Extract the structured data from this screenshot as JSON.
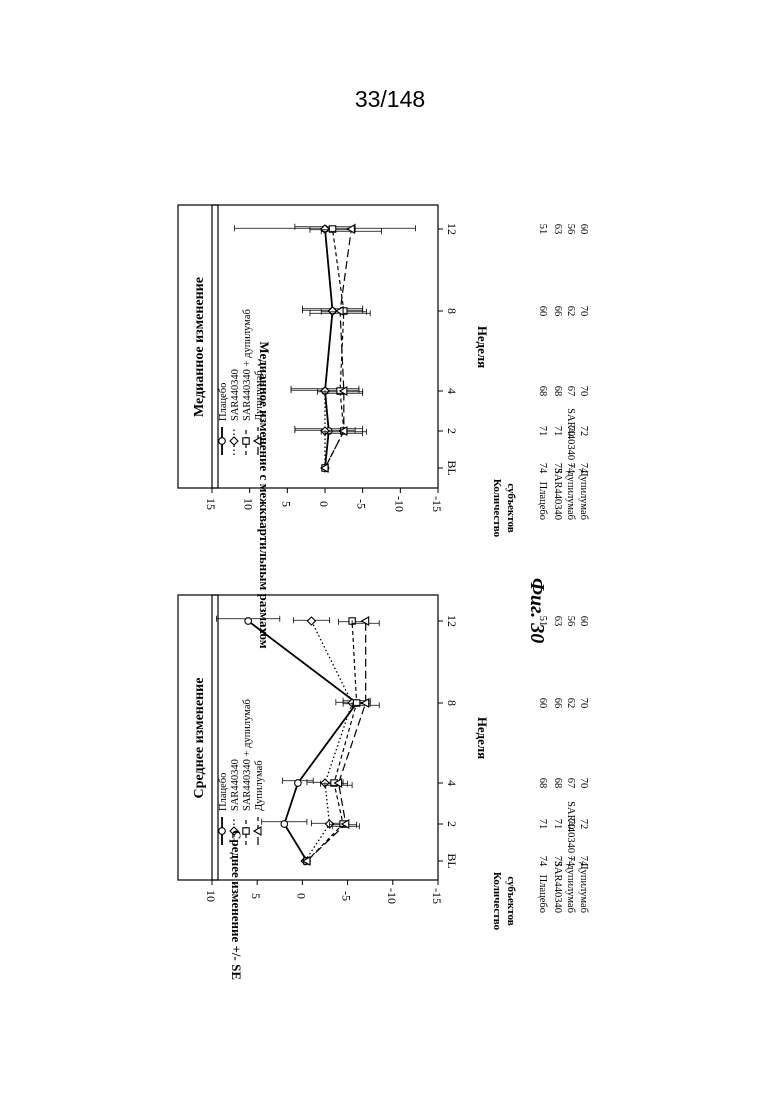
{
  "page_number": "33/148",
  "figure_caption": "Фиг. 30",
  "legend_items": [
    {
      "label": "Плацебо",
      "marker": "circle",
      "dash": "solid"
    },
    {
      "label": "SAR440340",
      "marker": "diamond",
      "dash": "dotted"
    },
    {
      "label": "SAR440340 + дупилумаб",
      "marker": "square",
      "dash": "dashed-short"
    },
    {
      "label": "Дупилумаб",
      "marker": "triangle",
      "dash": "dashed-long"
    }
  ],
  "subject_counts": {
    "header_line1": "Количество",
    "header_line2": "субъектов",
    "rows": [
      {
        "label": "Плацебо",
        "counts": [
          "74",
          "71",
          "68",
          "60",
          "51"
        ]
      },
      {
        "label": "SAR440340",
        "counts": [
          "73",
          "71",
          "68",
          "66",
          "63"
        ]
      },
      {
        "label": "SAR440340 + дупилумаб",
        "counts": [
          "74",
          "70",
          "67",
          "62",
          "56"
        ]
      },
      {
        "label": "Дупилумаб",
        "counts": [
          "74",
          "72",
          "70",
          "70",
          "60"
        ]
      }
    ]
  },
  "chart_data": [
    {
      "type": "line",
      "title": "Среднее изменение",
      "xlabel": "Неделя",
      "ylabel": "Среднее изменение +/- SE",
      "x_ticks": [
        "BL",
        "2",
        "4",
        "8",
        "12"
      ],
      "y_ticks": [
        "10",
        "5",
        "0",
        "-5",
        "-10",
        "-15"
      ],
      "ylim": [
        -15,
        10
      ],
      "series": [
        {
          "name": "Плацебо",
          "values": [
            -0.5,
            2.0,
            0.5,
            -6.0,
            6.0
          ],
          "err": [
            0,
            2.5,
            1.7,
            1.5,
            3.5
          ]
        },
        {
          "name": "SAR440340",
          "values": [
            -0.3,
            -3.0,
            -2.5,
            -5.5,
            -1.0
          ],
          "err": [
            0,
            2.0,
            2.0,
            1.8,
            2.0
          ]
        },
        {
          "name": "SAR440340 + дупилумаб",
          "values": [
            -0.5,
            -4.5,
            -3.5,
            -6.0,
            -5.5
          ],
          "err": [
            0,
            1.5,
            1.5,
            1.5,
            1.5
          ]
        },
        {
          "name": "Дупилумаб",
          "values": [
            -0.5,
            -4.8,
            -4.0,
            -7.0,
            -7.0
          ],
          "err": [
            0,
            1.5,
            1.5,
            1.5,
            1.5
          ]
        }
      ]
    },
    {
      "type": "line",
      "title": "Медианное изменение",
      "xlabel": "Неделя",
      "ylabel": "Медианное изменение с межквартильным размахом",
      "x_ticks": [
        "BL",
        "2",
        "4",
        "8",
        "12"
      ],
      "y_ticks": [
        "15",
        "10",
        "5",
        "0",
        "-5",
        "-10",
        "-15"
      ],
      "ylim": [
        -15,
        15
      ],
      "series": [
        {
          "name": "Плацебо",
          "values": [
            0.0,
            -0.5,
            0.0,
            -1.0,
            0.0
          ],
          "err": [
            0,
            4.5,
            4.5,
            4.0,
            4.0
          ]
        },
        {
          "name": "SAR440340",
          "values": [
            0.0,
            0.0,
            0.0,
            -1.0,
            0.0
          ],
          "err": [
            0,
            4.0,
            4.5,
            4.0,
            12.0
          ]
        },
        {
          "name": "SAR440340 + дупилумаб",
          "values": [
            0.0,
            -2.5,
            -2.0,
            -2.5,
            -1.0
          ],
          "err": [
            0,
            3.0,
            3.0,
            3.0,
            3.0
          ]
        },
        {
          "name": "Дупилумаб",
          "values": [
            0.0,
            -2.5,
            -2.5,
            -2.0,
            -3.5
          ],
          "err": [
            0,
            2.5,
            2.5,
            4.0,
            4.0
          ]
        }
      ]
    }
  ]
}
